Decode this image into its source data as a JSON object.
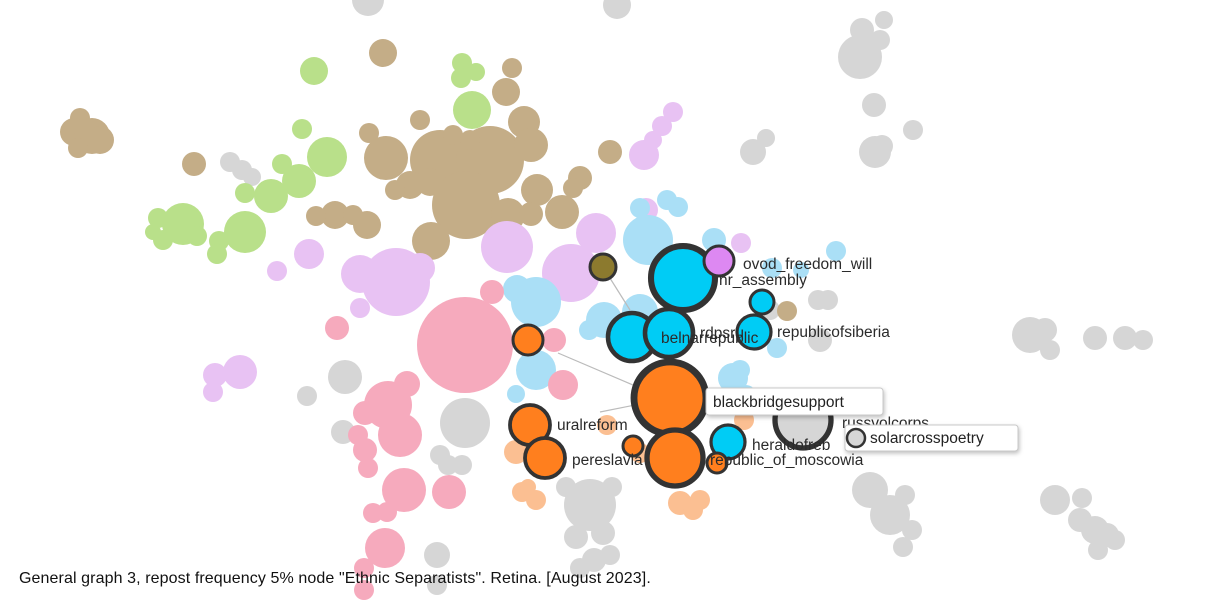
{
  "caption": "General graph 3, repost frequency 5% node \"Ethnic Separatists\". Retina. [August 2023].",
  "colors": {
    "tan": "#c4ad87",
    "green": "#b9e08a",
    "lavender": "#e8c2f3",
    "pink": "#f6aabd",
    "light_blue": "#aadff6",
    "cyan": "#00ccf5",
    "orange": "#ff7f1e",
    "peach": "#fbbf92",
    "grey": "#d6d6d6",
    "olive": "#8c7a2e",
    "violet": "#dd88f2",
    "outline": "#333333"
  },
  "labels": [
    {
      "id": "ovod",
      "text": "ovod_freedom_will"
    },
    {
      "id": "nr",
      "text": "nr_assembly"
    },
    {
      "id": "rdpsru",
      "text": "rdpsru"
    },
    {
      "id": "belnar",
      "text": "belnarrepublic"
    },
    {
      "id": "siberia",
      "text": "republicofsiberia"
    },
    {
      "id": "ural",
      "text": "uralreform"
    },
    {
      "id": "peres",
      "text": "pereslavia"
    },
    {
      "id": "herald",
      "text": "heraldofreb"
    },
    {
      "id": "moscowia",
      "text": "republic_of_moscowia"
    },
    {
      "id": "russvol",
      "text": "russvolcorps"
    }
  ],
  "tooltips": [
    {
      "id": "blackbridge",
      "text": "blackbridgesupport"
    },
    {
      "id": "solarcross",
      "text": "solarcrosspoetry"
    }
  ]
}
